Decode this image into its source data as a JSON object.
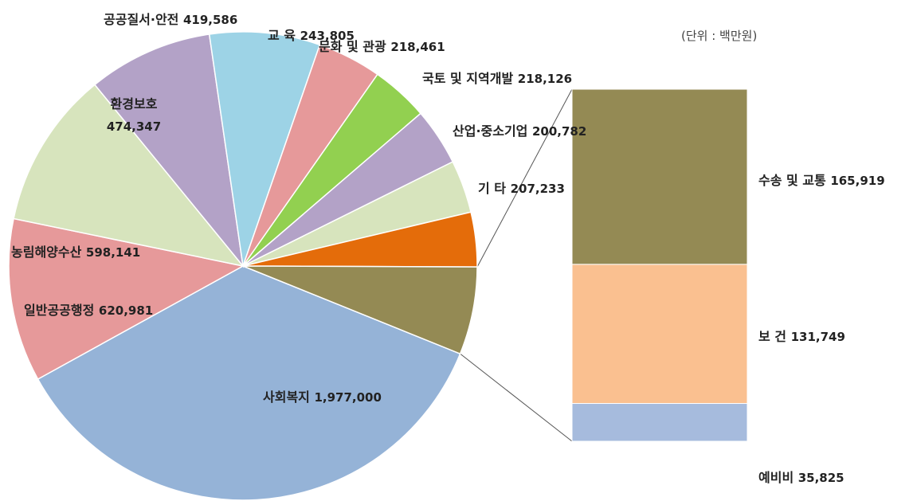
{
  "chart_data": {
    "type": "pie",
    "unit": "(단위 : 백만원)",
    "slices": [
      {
        "name": "사회복지",
        "value": 1977000,
        "value_label": "1,977,000",
        "color": "#95b3d7"
      },
      {
        "name": "일반공공행정",
        "value": 620981,
        "value_label": "620,981",
        "color": "#e6999a"
      },
      {
        "name": "농림해양수산",
        "value": 598141,
        "value_label": "598,141",
        "color": "#d7e4bd"
      },
      {
        "name": "환경보호",
        "value": 474347,
        "value_label": "474,347",
        "color": "#b3a2c7"
      },
      {
        "name": "공공질서·안전",
        "value": 419586,
        "value_label": "419,586",
        "color": "#9dd3e6"
      },
      {
        "name": "교 육",
        "value": 243805,
        "value_label": "243,805",
        "color": "#e6999a"
      },
      {
        "name": "문화 및 관광",
        "value": 218461,
        "value_label": "218,461",
        "color": "#92d050"
      },
      {
        "name": "국토 및 지역개발",
        "value": 218126,
        "value_label": "218,126",
        "color": "#b3a2c7"
      },
      {
        "name": "산업·중소기업",
        "value": 200782,
        "value_label": "200,782",
        "color": "#d7e4bd"
      },
      {
        "name": "기 타",
        "value": 207233,
        "value_label": "207,233",
        "color": "#e46c0a"
      },
      {
        "name": "수송 및 교통 / 보 건 / 예비비",
        "value": 333493,
        "value_label": "",
        "color": "#948a54",
        "exploded": true
      }
    ],
    "breakdown": {
      "type": "stacked-bar",
      "segments": [
        {
          "name": "수송 및 교통",
          "value": 165919,
          "value_label": "165,919",
          "color": "#948a54"
        },
        {
          "name": "보 건",
          "value": 131749,
          "value_label": "131,749",
          "color": "#fac090"
        },
        {
          "name": "예비비",
          "value": 35825,
          "value_label": "35,825",
          "color": "#a6bbdd"
        }
      ]
    }
  }
}
